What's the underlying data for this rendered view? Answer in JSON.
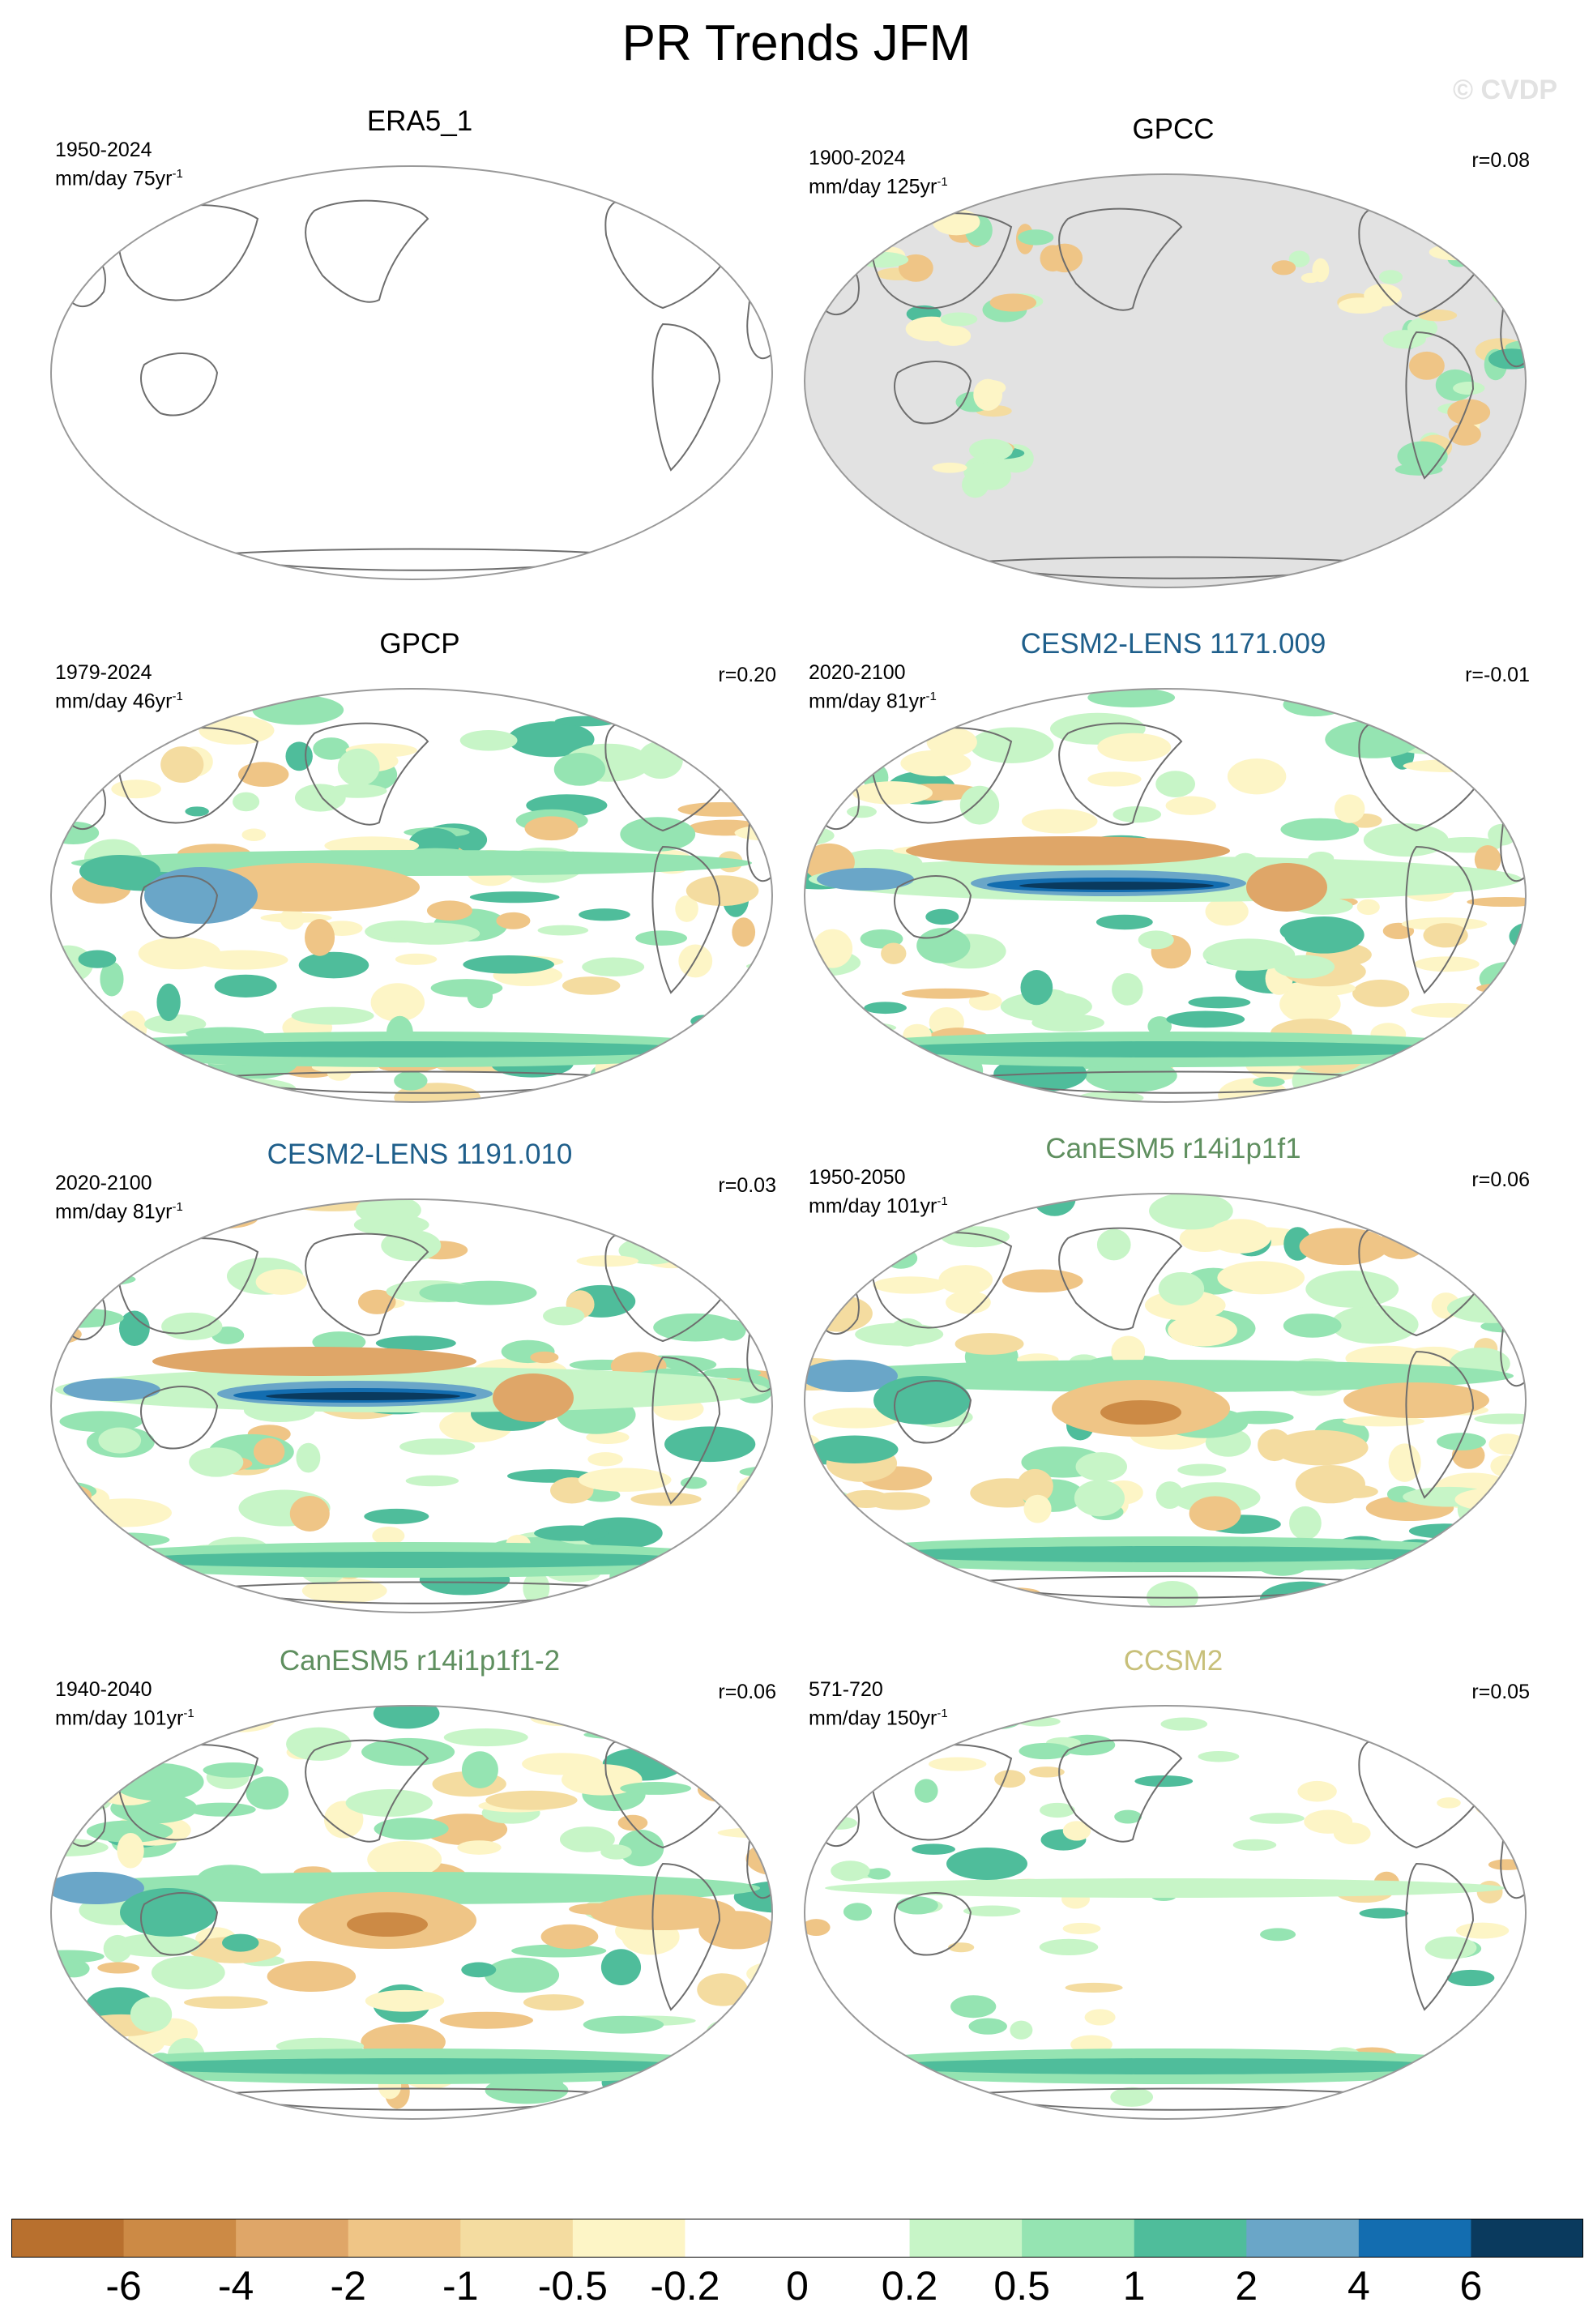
{
  "figure": {
    "title": "PR Trends JFM",
    "watermark": "© CVDP"
  },
  "panels": [
    {
      "title": "ERA5_1",
      "title_color": "#000000",
      "period": "1950-2024",
      "units": "mm/day 75yr",
      "units_exp": "-1",
      "corr": "",
      "style": "blank"
    },
    {
      "title": "GPCC",
      "title_color": "#000000",
      "period": "1900-2024",
      "units": "mm/day 125yr",
      "units_exp": "-1",
      "corr": "r=0.08",
      "style": "land"
    },
    {
      "title": "GPCP",
      "title_color": "#000000",
      "period": "1979-2024",
      "units": "mm/day 46yr",
      "units_exp": "-1",
      "corr": "r=0.20",
      "style": "obs"
    },
    {
      "title": "CESM2-LENS 1171.009",
      "title_color": "#1f5f8b",
      "period": "2020-2100",
      "units": "mm/day 81yr",
      "units_exp": "-1",
      "corr": "r=-0.01",
      "style": "cesm"
    },
    {
      "title": "CESM2-LENS 1191.010",
      "title_color": "#1f5f8b",
      "period": "2020-2100",
      "units": "mm/day 81yr",
      "units_exp": "-1",
      "corr": "r=0.03",
      "style": "cesm"
    },
    {
      "title": "CanESM5 r14i1p1f1",
      "title_color": "#5f8f5f",
      "period": "1950-2050",
      "units": "mm/day 101yr",
      "units_exp": "-1",
      "corr": "r=0.06",
      "style": "canesm"
    },
    {
      "title": "CanESM5 r14i1p1f1-2",
      "title_color": "#5f8f5f",
      "period": "1940-2040",
      "units": "mm/day 101yr",
      "units_exp": "-1",
      "corr": "r=0.06",
      "style": "canesm"
    },
    {
      "title": "CCSM2",
      "title_color": "#c8c07a",
      "period": "571-720",
      "units": "mm/day 150yr",
      "units_exp": "-1",
      "corr": "r=0.05",
      "style": "weak"
    }
  ],
  "colorbar": {
    "colors": [
      "#b8702e",
      "#cc8a45",
      "#dfa668",
      "#efc586",
      "#f4dca0",
      "#fdf5c6",
      "#ffffff",
      "#ffffff",
      "#c7f5c7",
      "#95e4b2",
      "#4fbd9b",
      "#6aa6c8",
      "#136db0",
      "#0a3a5e"
    ],
    "labels": [
      "-6",
      "-4",
      "-2",
      "-1",
      "-0.5",
      "-0.2",
      "0",
      "0.2",
      "0.5",
      "1",
      "2",
      "4",
      "6"
    ]
  },
  "map_colors": {
    "land_fill": "#ffffff",
    "ocean_missing": "#e2e2e2",
    "coast": "#6e6e6e",
    "border": "#999999"
  }
}
